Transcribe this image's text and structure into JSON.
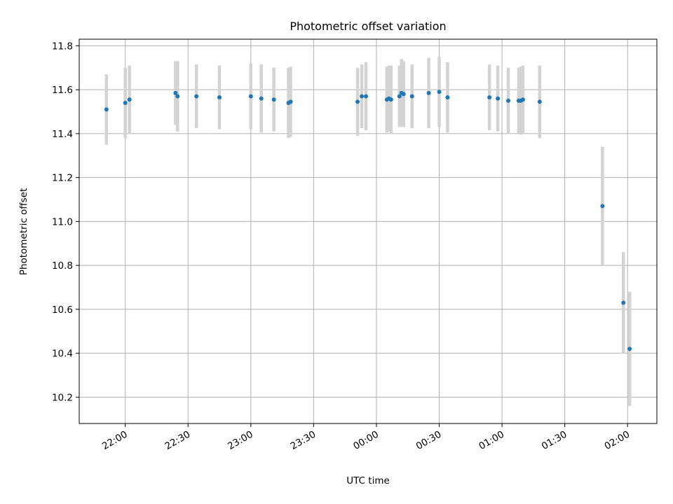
{
  "chart_data": {
    "type": "scatter",
    "title": "Photometric offset variation",
    "xlabel": "UTC time",
    "ylabel": "Photometric offset",
    "x_tick_labels": [
      "22:00",
      "22:30",
      "23:00",
      "23:30",
      "00:00",
      "00:30",
      "01:00",
      "01:30",
      "02:00"
    ],
    "x_tick_times": [
      "2000-01-01T22:00",
      "2000-01-01T22:30",
      "2000-01-01T23:00",
      "2000-01-01T23:30",
      "2000-01-02T00:00",
      "2000-01-02T00:30",
      "2000-01-02T01:00",
      "2000-01-02T01:30",
      "2000-01-02T02:00"
    ],
    "y_ticks": [
      10.2,
      10.4,
      10.6,
      10.8,
      11.0,
      11.2,
      11.4,
      11.6,
      11.8
    ],
    "xlim": [
      "2000-01-01T21:38",
      "2000-01-02T02:14"
    ],
    "ylim": [
      10.08,
      11.83
    ],
    "grid": true,
    "colors": {
      "point": "#1f77b4",
      "errorbar": "#d3d3d3",
      "grid": "#b0b0b0"
    },
    "points": [
      {
        "x": "2000-01-01T21:51",
        "y": 11.51,
        "yerr": 0.16
      },
      {
        "x": "2000-01-01T22:00",
        "y": 11.54,
        "yerr": 0.16
      },
      {
        "x": "2000-01-01T22:02",
        "y": 11.555,
        "yerr": 0.155
      },
      {
        "x": "2000-01-01T22:24",
        "y": 11.585,
        "yerr": 0.145
      },
      {
        "x": "2000-01-01T22:25",
        "y": 11.57,
        "yerr": 0.16
      },
      {
        "x": "2000-01-01T22:34",
        "y": 11.57,
        "yerr": 0.145
      },
      {
        "x": "2000-01-01T22:45",
        "y": 11.565,
        "yerr": 0.145
      },
      {
        "x": "2000-01-01T23:00",
        "y": 11.57,
        "yerr": 0.15
      },
      {
        "x": "2000-01-01T23:05",
        "y": 11.56,
        "yerr": 0.155
      },
      {
        "x": "2000-01-01T23:11",
        "y": 11.555,
        "yerr": 0.145
      },
      {
        "x": "2000-01-01T23:18",
        "y": 11.54,
        "yerr": 0.16
      },
      {
        "x": "2000-01-01T23:19",
        "y": 11.545,
        "yerr": 0.16
      },
      {
        "x": "2000-01-01T23:51",
        "y": 11.545,
        "yerr": 0.155
      },
      {
        "x": "2000-01-01T23:53",
        "y": 11.57,
        "yerr": 0.145
      },
      {
        "x": "2000-01-01T23:55",
        "y": 11.57,
        "yerr": 0.155
      },
      {
        "x": "2000-01-02T00:05",
        "y": 11.555,
        "yerr": 0.15
      },
      {
        "x": "2000-01-02T00:06",
        "y": 11.56,
        "yerr": 0.15
      },
      {
        "x": "2000-01-02T00:07",
        "y": 11.555,
        "yerr": 0.155
      },
      {
        "x": "2000-01-02T00:11",
        "y": 11.57,
        "yerr": 0.14
      },
      {
        "x": "2000-01-02T00:12",
        "y": 11.585,
        "yerr": 0.155
      },
      {
        "x": "2000-01-02T00:13",
        "y": 11.58,
        "yerr": 0.15
      },
      {
        "x": "2000-01-02T00:17",
        "y": 11.57,
        "yerr": 0.145
      },
      {
        "x": "2000-01-02T00:25",
        "y": 11.585,
        "yerr": 0.16
      },
      {
        "x": "2000-01-02T00:30",
        "y": 11.59,
        "yerr": 0.16
      },
      {
        "x": "2000-01-02T00:34",
        "y": 11.565,
        "yerr": 0.16
      },
      {
        "x": "2000-01-02T00:54",
        "y": 11.565,
        "yerr": 0.15
      },
      {
        "x": "2000-01-02T00:58",
        "y": 11.56,
        "yerr": 0.15
      },
      {
        "x": "2000-01-02T01:03",
        "y": 11.55,
        "yerr": 0.15
      },
      {
        "x": "2000-01-02T01:08",
        "y": 11.55,
        "yerr": 0.15
      },
      {
        "x": "2000-01-02T01:09",
        "y": 11.55,
        "yerr": 0.155
      },
      {
        "x": "2000-01-02T01:10",
        "y": 11.555,
        "yerr": 0.155
      },
      {
        "x": "2000-01-02T01:18",
        "y": 11.545,
        "yerr": 0.165
      },
      {
        "x": "2000-01-02T01:48",
        "y": 11.07,
        "yerr": 0.27
      },
      {
        "x": "2000-01-02T01:58",
        "y": 10.63,
        "yerr": 0.23
      },
      {
        "x": "2000-01-02T02:01",
        "y": 10.42,
        "yerr": 0.26
      }
    ]
  }
}
